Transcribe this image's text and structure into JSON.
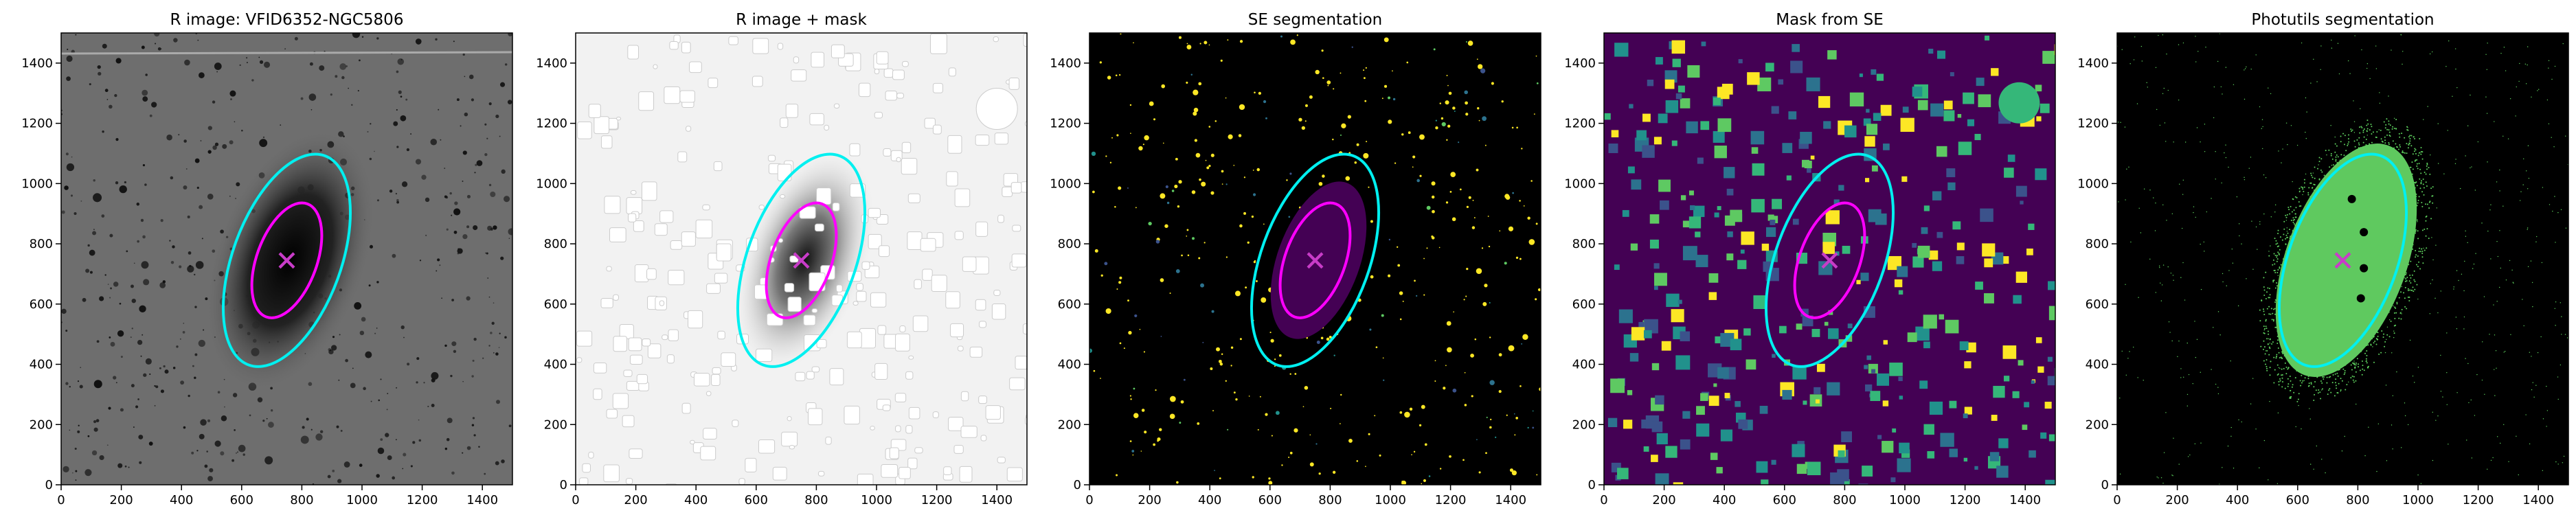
{
  "chart_data": [
    {
      "type": "image",
      "title": "R image: VFID6352-NGC5806",
      "xlim": [
        0,
        1500
      ],
      "ylim": [
        0,
        1500
      ],
      "xticks": [
        0,
        200,
        400,
        600,
        800,
        1000,
        1200,
        1400
      ],
      "yticks": [
        0,
        200,
        400,
        600,
        800,
        1000,
        1200,
        1400
      ],
      "center": [
        750,
        745
      ],
      "marker_color": "#c83cc8",
      "ellipses": [
        {
          "x": 750,
          "y": 745,
          "a": 370,
          "b": 180,
          "angle": 20,
          "color": "#00f0f0"
        },
        {
          "x": 750,
          "y": 745,
          "a": 200,
          "b": 100,
          "angle": 20,
          "color": "#ff00ff"
        }
      ]
    },
    {
      "type": "image",
      "title": "R image + mask",
      "xlim": [
        0,
        1500
      ],
      "ylim": [
        0,
        1500
      ],
      "xticks": [
        0,
        200,
        400,
        600,
        800,
        1000,
        1200,
        1400
      ],
      "yticks": [
        0,
        200,
        400,
        600,
        800,
        1000,
        1200,
        1400
      ],
      "center": [
        750,
        745
      ],
      "marker_color": "#c83cc8",
      "ellipses": [
        {
          "x": 750,
          "y": 745,
          "a": 370,
          "b": 180,
          "angle": 20,
          "color": "#00f0f0"
        },
        {
          "x": 750,
          "y": 745,
          "a": 200,
          "b": 100,
          "angle": 20,
          "color": "#ff00ff"
        }
      ]
    },
    {
      "type": "image",
      "title": "SE segmentation",
      "xlim": [
        0,
        1500
      ],
      "ylim": [
        0,
        1500
      ],
      "xticks": [
        0,
        200,
        400,
        600,
        800,
        1000,
        1200,
        1400
      ],
      "yticks": [
        0,
        200,
        400,
        600,
        800,
        1000,
        1200,
        1400
      ],
      "center": [
        750,
        745
      ],
      "marker_color": "#c83cc8",
      "ellipses": [
        {
          "x": 750,
          "y": 745,
          "a": 370,
          "b": 180,
          "angle": 20,
          "color": "#00f0f0"
        },
        {
          "x": 750,
          "y": 745,
          "a": 200,
          "b": 100,
          "angle": 20,
          "color": "#ff00ff"
        }
      ]
    },
    {
      "type": "image",
      "title": "Mask from SE",
      "xlim": [
        0,
        1500
      ],
      "ylim": [
        0,
        1500
      ],
      "xticks": [
        0,
        200,
        400,
        600,
        800,
        1000,
        1200,
        1400
      ],
      "yticks": [
        0,
        200,
        400,
        600,
        800,
        1000,
        1200,
        1400
      ],
      "center": [
        750,
        745
      ],
      "marker_color": "#c83cc8",
      "ellipses": [
        {
          "x": 750,
          "y": 745,
          "a": 370,
          "b": 180,
          "angle": 20,
          "color": "#00f0f0"
        },
        {
          "x": 750,
          "y": 745,
          "a": 200,
          "b": 100,
          "angle": 20,
          "color": "#ff00ff"
        }
      ]
    },
    {
      "type": "image",
      "title": "Photutils segmentation",
      "xlim": [
        0,
        1500
      ],
      "ylim": [
        0,
        1500
      ],
      "xticks": [
        0,
        200,
        400,
        600,
        800,
        1000,
        1200,
        1400
      ],
      "yticks": [
        0,
        200,
        400,
        600,
        800,
        1000,
        1200,
        1400
      ],
      "center": [
        750,
        745
      ],
      "marker_color": "#c83cc8",
      "ellipses": [
        {
          "x": 750,
          "y": 745,
          "a": 370,
          "b": 180,
          "angle": 20,
          "color": "#00f0f0"
        }
      ]
    }
  ]
}
